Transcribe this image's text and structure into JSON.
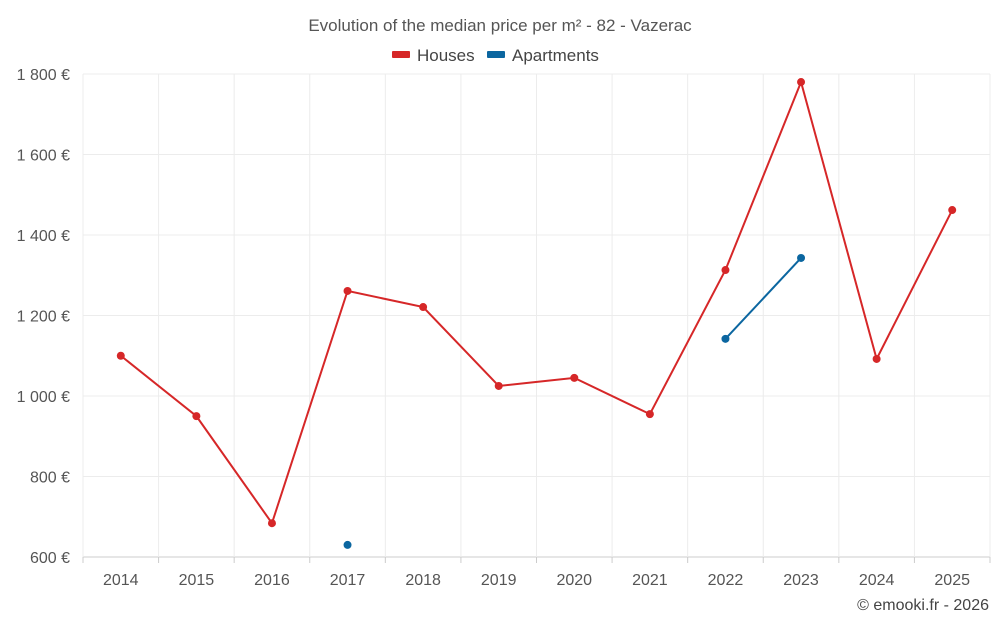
{
  "chart_data": {
    "type": "line",
    "title": "Evolution of the median price per m² - 82 - Vazerac",
    "categories": [
      "2014",
      "2015",
      "2016",
      "2017",
      "2018",
      "2019",
      "2020",
      "2021",
      "2022",
      "2023",
      "2024",
      "2025"
    ],
    "series": [
      {
        "name": "Houses",
        "color": "#d62728",
        "values": [
          1100,
          950,
          684,
          1261,
          1221,
          1025,
          1045,
          955,
          1313,
          1780,
          1092,
          1462
        ]
      },
      {
        "name": "Apartments",
        "color": "#0b66a0",
        "values": [
          null,
          null,
          null,
          630,
          null,
          null,
          null,
          null,
          1142,
          1343,
          null,
          null
        ]
      }
    ],
    "ylim": [
      600,
      1800
    ],
    "yticks": [
      600,
      800,
      1000,
      1200,
      1400,
      1600,
      1800
    ],
    "ytick_labels": [
      "600 €",
      "800 €",
      "1 000 €",
      "1 200 €",
      "1 400 €",
      "1 600 €",
      "1 800 €"
    ],
    "xlabel": "",
    "ylabel": "",
    "grid": true,
    "legend": "top-center"
  },
  "credit": "© emooki.fr - 2026"
}
